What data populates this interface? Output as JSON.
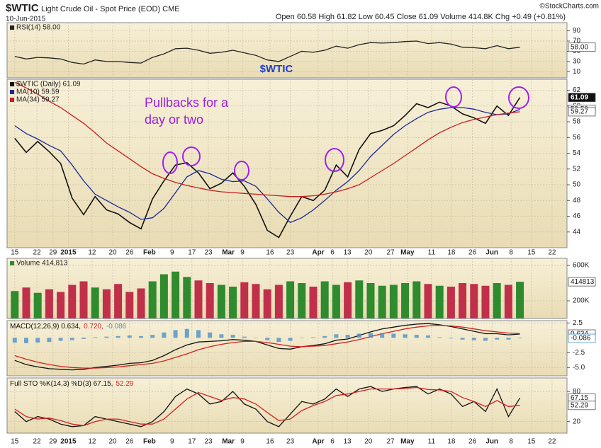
{
  "header": {
    "title": "$WTIC",
    "subtitle": "Light Crude Oil - Spot Price (EOD) CME",
    "date": "10-Jun-2015",
    "quote": "Open 60.58  High 61.82  Low 60.45  Close 61.09  Volume 414.8K  Chg +0.49 (+0.81%)",
    "credit": "©StockCharts.com"
  },
  "chart_data": [
    {
      "type": "line",
      "annotation": "$WTIC",
      "ylim": [
        -2,
        106
      ],
      "yticks": [
        10,
        30,
        50,
        70,
        90
      ],
      "grid": true,
      "series": [
        {
          "name": "RSI(14) 58.00",
          "color": "#222222",
          "last_value_box": true,
          "values": [
            40,
            35,
            38,
            37,
            35,
            28,
            25,
            33,
            30,
            30,
            28,
            27,
            38,
            45,
            55,
            56,
            52,
            46,
            48,
            52,
            47,
            42,
            33,
            30,
            40,
            50,
            48,
            52,
            60,
            56,
            63,
            67,
            66,
            67,
            69,
            70,
            65,
            67,
            64,
            58,
            57,
            55,
            61,
            55,
            58
          ],
          "value_labels": [
            null,
            null,
            null,
            null,
            null,
            null,
            null,
            null,
            null,
            null,
            null,
            null,
            null,
            null,
            null,
            null,
            null,
            null,
            null,
            null,
            null,
            null,
            null,
            null,
            null,
            null,
            null,
            null,
            null,
            null,
            null,
            null,
            null,
            null,
            null,
            null,
            null,
            null,
            null,
            null,
            null,
            null,
            null,
            null,
            "58.00"
          ]
        }
      ]
    },
    {
      "type": "line",
      "annotation": [
        "Pullbacks for a",
        "day or two"
      ],
      "ylim": [
        42,
        63.4
      ],
      "yticks": [
        44,
        46,
        48,
        50,
        52,
        54,
        56,
        58,
        60,
        62
      ],
      "grid": true,
      "x": [
        0,
        3,
        6,
        9,
        12,
        15,
        18,
        21,
        24,
        27,
        30,
        33,
        36,
        39,
        42,
        45,
        48,
        51,
        54,
        57,
        60,
        63,
        66,
        69,
        72,
        75,
        78,
        81,
        84,
        87,
        90,
        93,
        96,
        99,
        102,
        105,
        108,
        111,
        114,
        117,
        120,
        123,
        126,
        129,
        132
      ],
      "xlim": [
        -2,
        144.3
      ],
      "xticks": [
        {
          "value": 0,
          "label": "15"
        },
        {
          "value": 5.8,
          "label": "22"
        },
        {
          "value": 10,
          "label": "29"
        },
        {
          "value": 14,
          "label": "2015"
        },
        {
          "value": 20.2,
          "label": "12"
        },
        {
          "value": 25.6,
          "label": "20"
        },
        {
          "value": 30,
          "label": "26"
        },
        {
          "value": 35.2,
          "label": "Feb"
        },
        {
          "value": 41.1,
          "label": "9"
        },
        {
          "value": 46.3,
          "label": "17"
        },
        {
          "value": 50.6,
          "label": "23"
        },
        {
          "value": 55.8,
          "label": "Mar"
        },
        {
          "value": 59.5,
          "label": "9"
        },
        {
          "value": 66.7,
          "label": "16"
        },
        {
          "value": 72,
          "label": "23"
        },
        {
          "value": 79.3,
          "label": "Apr"
        },
        {
          "value": 83,
          "label": "6"
        },
        {
          "value": 86.9,
          "label": "13"
        },
        {
          "value": 92.4,
          "label": "20"
        },
        {
          "value": 98.2,
          "label": "27"
        },
        {
          "value": 102.6,
          "label": "May"
        },
        {
          "value": 108.9,
          "label": "11"
        },
        {
          "value": 114.1,
          "label": "18"
        },
        {
          "value": 119.6,
          "label": "26"
        },
        {
          "value": 124.7,
          "label": "Jun"
        },
        {
          "value": 129.7,
          "label": "8"
        },
        {
          "value": 135,
          "label": "15"
        },
        {
          "value": 140.4,
          "label": "22"
        }
      ],
      "series": [
        {
          "name": "$WTIC (Daily) 61.09",
          "color": "#111111",
          "last_value_box": true,
          "filled_box": true,
          "values": [
            55.9,
            54.1,
            55.5,
            54.2,
            52.7,
            48.3,
            46.2,
            48.5,
            46.8,
            46.3,
            45.2,
            44.4,
            48.2,
            50.5,
            52.5,
            52.8,
            51.5,
            49.5,
            50.2,
            51.5,
            49.8,
            47.5,
            44.2,
            43.3,
            46.0,
            48.5,
            48.0,
            49.3,
            52.5,
            51.0,
            54.5,
            56.5,
            56.9,
            57.5,
            58.8,
            60.3,
            59.8,
            60.5,
            60.0,
            59.0,
            58.5,
            57.8,
            60.0,
            58.8,
            61.09
          ]
        },
        {
          "name": "MA(10) 59.59",
          "color": "#1a2a9a",
          "last_value_box": true,
          "values": [
            57.5,
            56.5,
            55.8,
            55.0,
            54.3,
            52.5,
            50.5,
            48.8,
            48.0,
            47.2,
            46.5,
            45.6,
            45.8,
            47.0,
            49.0,
            51.0,
            51.8,
            51.4,
            50.7,
            50.4,
            50.5,
            49.8,
            48.2,
            46.5,
            45.2,
            45.8,
            46.8,
            48.0,
            49.3,
            50.4,
            51.8,
            53.6,
            55.0,
            56.4,
            57.5,
            58.4,
            59.2,
            59.6,
            59.8,
            59.8,
            59.6,
            59.2,
            58.9,
            59.0,
            59.59
          ]
        },
        {
          "name": "MA(34) 59.27",
          "color": "#c81e1e",
          "last_value_box": true,
          "values": [
            63.0,
            62.3,
            61.5,
            60.6,
            59.8,
            58.8,
            57.8,
            56.6,
            55.3,
            54.3,
            53.3,
            52.3,
            51.4,
            50.8,
            50.3,
            49.9,
            49.6,
            49.3,
            49.1,
            49.0,
            48.9,
            48.8,
            48.7,
            48.6,
            48.5,
            48.5,
            48.6,
            48.8,
            49.1,
            49.5,
            50.0,
            50.9,
            51.8,
            52.7,
            53.7,
            54.7,
            55.7,
            56.6,
            57.3,
            57.9,
            58.3,
            58.6,
            58.9,
            59.1,
            59.27
          ]
        }
      ]
    },
    {
      "type": "bar",
      "ylim": [
        0,
        680000
      ],
      "yticks": [
        {
          "value": 200000,
          "label": "200K"
        },
        {
          "value": 600000,
          "label": "600K"
        }
      ],
      "grid": true,
      "series": [
        {
          "name": "Volume 414,813",
          "color": "#2e8b2e",
          "down_color": "#c0304a",
          "last_value_box": true,
          "values": [
            310000,
            350000,
            290000,
            330000,
            300000,
            380000,
            420000,
            350000,
            330000,
            390000,
            300000,
            340000,
            420000,
            500000,
            530000,
            470000,
            430000,
            400000,
            380000,
            360000,
            410000,
            390000,
            330000,
            380000,
            420000,
            400000,
            360000,
            420000,
            380000,
            410000,
            430000,
            400000,
            370000,
            380000,
            400000,
            420000,
            390000,
            370000,
            360000,
            400000,
            390000,
            370000,
            400000,
            380000,
            414813
          ]
        }
      ]
    },
    {
      "type": "line",
      "title_parts": [
        "MACD(12,26,9) 0.634,",
        "0.720,",
        "-0.086"
      ],
      "ylim": [
        -6.4,
        2.9
      ],
      "yticks": [
        2.5,
        -2.5,
        {
          "value": -5,
          "label": "-5.0"
        }
      ],
      "grid": true,
      "series": [
        {
          "color": "#111111",
          "last_value_box": true,
          "values": [
            -3.8,
            -4.5,
            -4.9,
            -5.2,
            -5.3,
            -5.4,
            -5.3,
            -5.0,
            -4.8,
            -4.6,
            -4.3,
            -4.2,
            -3.8,
            -3.0,
            -2.0,
            -1.2,
            -0.7,
            -0.6,
            -0.5,
            -0.3,
            -0.4,
            -0.6,
            -1.2,
            -1.8,
            -1.9,
            -1.5,
            -1.3,
            -1.0,
            -0.4,
            -0.2,
            0.4,
            1.0,
            1.5,
            1.8,
            2.1,
            2.3,
            2.4,
            2.2,
            1.9,
            1.5,
            1.1,
            0.7,
            0.7,
            0.5,
            0.634
          ]
        },
        {
          "color": "#d42020",
          "values": [
            -3.0,
            -3.6,
            -4.1,
            -4.5,
            -4.8,
            -5.0,
            -5.1,
            -5.1,
            -5.0,
            -4.9,
            -4.7,
            -4.5,
            -4.3,
            -3.9,
            -3.3,
            -2.7,
            -2.0,
            -1.5,
            -1.1,
            -0.8,
            -0.6,
            -0.6,
            -0.8,
            -1.1,
            -1.4,
            -1.5,
            -1.4,
            -1.3,
            -1.0,
            -0.7,
            -0.3,
            0.2,
            0.7,
            1.1,
            1.5,
            1.8,
            2.0,
            2.1,
            2.0,
            1.8,
            1.5,
            1.2,
            1.0,
            0.8,
            0.72
          ]
        },
        {
          "type": "bar",
          "color": "#4a90c8",
          "last_value_box": true,
          "values": [
            -0.8,
            -0.9,
            -0.8,
            -0.7,
            -0.5,
            -0.4,
            -0.2,
            0.1,
            0.2,
            0.3,
            0.4,
            0.3,
            0.5,
            0.9,
            1.3,
            1.5,
            1.3,
            0.9,
            0.6,
            0.5,
            0.2,
            0,
            -0.4,
            -0.7,
            -0.5,
            0,
            0.1,
            0.3,
            0.6,
            0.5,
            0.7,
            0.8,
            0.8,
            0.7,
            0.6,
            0.5,
            0.4,
            0.1,
            -0.1,
            -0.3,
            -0.4,
            -0.5,
            -0.3,
            -0.3,
            -0.086
          ]
        }
      ]
    },
    {
      "type": "line",
      "title_parts": [
        "Full STO %K(14,3) %D(3) 67.15,",
        "52.29"
      ],
      "ylim": [
        -3,
        107
      ],
      "yticks": [
        20,
        80
      ],
      "grid": true,
      "series": [
        {
          "color": "#111111",
          "last_value_box": true,
          "values": [
            40,
            20,
            30,
            25,
            15,
            10,
            12,
            30,
            25,
            20,
            15,
            10,
            20,
            40,
            70,
            85,
            75,
            55,
            60,
            80,
            55,
            45,
            20,
            10,
            35,
            60,
            55,
            65,
            85,
            70,
            85,
            90,
            80,
            85,
            88,
            90,
            75,
            85,
            75,
            50,
            60,
            40,
            85,
            30,
            67.15
          ]
        },
        {
          "color": "#d42020",
          "last_value_box": true,
          "values": [
            45,
            30,
            25,
            27,
            22,
            15,
            12,
            20,
            25,
            25,
            20,
            15,
            15,
            25,
            45,
            65,
            78,
            70,
            62,
            68,
            65,
            55,
            38,
            22,
            25,
            42,
            52,
            60,
            72,
            75,
            80,
            85,
            85,
            85,
            86,
            88,
            84,
            83,
            80,
            68,
            60,
            50,
            62,
            50,
            52.29
          ]
        }
      ]
    }
  ]
}
